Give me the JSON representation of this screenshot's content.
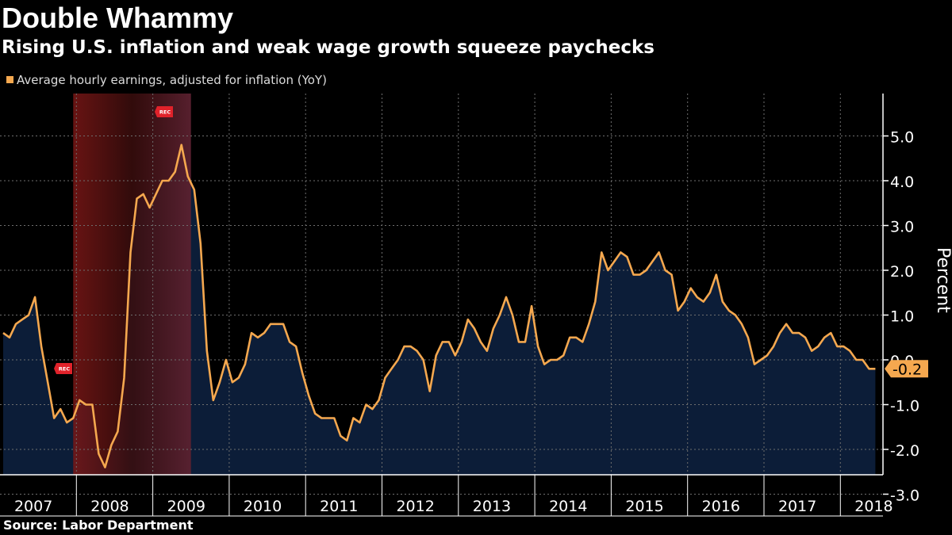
{
  "title": "Double Whammy",
  "subtitle": "Rising U.S. inflation and weak wage growth squeeze paychecks",
  "source": "Source: Labor Department",
  "colors": {
    "background": "#000000",
    "line": "#f5a84f",
    "area": "#0c1d38",
    "recession_start": "#7a1716",
    "recession_end": "#5b2130",
    "rec_marker": "#e0222a",
    "grid": "#6e6e6e",
    "text": "#ffffff"
  },
  "chart_data": {
    "type": "area",
    "title": "Double Whammy",
    "subtitle": "Rising U.S. inflation and weak wage growth squeeze paychecks",
    "ylabel": "Percent",
    "ylim": [
      -3.0,
      5.0
    ],
    "yticks": [
      5.0,
      4.0,
      3.0,
      2.0,
      1.0,
      0.0,
      -1.0,
      -2.0,
      -3.0
    ],
    "ytick_labels": [
      "5.0",
      "4.0",
      "3.0",
      "2.0",
      "1.0",
      "0.0",
      "-1.0",
      "-2.0",
      "-3.0"
    ],
    "x_range": [
      "2007-01",
      "2018-06"
    ],
    "xtick_labels": [
      "2007",
      "2008",
      "2009",
      "2010",
      "2011",
      "2012",
      "2013",
      "2014",
      "2015",
      "2016",
      "2017",
      "2018"
    ],
    "grid": true,
    "legend_position": "top-left",
    "recession": {
      "start": "2007-12",
      "end": "2009-06",
      "marker_label": "REC"
    },
    "last_value_label": "-0.2",
    "series": [
      {
        "name": "Average hourly earnings, adjusted for inflation (YoY)",
        "dates": [
          "2007-01",
          "2007-02",
          "2007-03",
          "2007-04",
          "2007-05",
          "2007-06",
          "2007-07",
          "2007-08",
          "2007-09",
          "2007-10",
          "2007-11",
          "2007-12",
          "2008-01",
          "2008-02",
          "2008-03",
          "2008-04",
          "2008-05",
          "2008-06",
          "2008-07",
          "2008-08",
          "2008-09",
          "2008-10",
          "2008-11",
          "2008-12",
          "2009-01",
          "2009-02",
          "2009-03",
          "2009-04",
          "2009-05",
          "2009-06",
          "2009-07",
          "2009-08",
          "2009-09",
          "2009-10",
          "2009-11",
          "2009-12",
          "2010-01",
          "2010-02",
          "2010-03",
          "2010-04",
          "2010-05",
          "2010-06",
          "2010-07",
          "2010-08",
          "2010-09",
          "2010-10",
          "2010-11",
          "2010-12",
          "2011-01",
          "2011-02",
          "2011-03",
          "2011-04",
          "2011-05",
          "2011-06",
          "2011-07",
          "2011-08",
          "2011-09",
          "2011-10",
          "2011-11",
          "2011-12",
          "2012-01",
          "2012-02",
          "2012-03",
          "2012-04",
          "2012-05",
          "2012-06",
          "2012-07",
          "2012-08",
          "2012-09",
          "2012-10",
          "2012-11",
          "2012-12",
          "2013-01",
          "2013-02",
          "2013-03",
          "2013-04",
          "2013-05",
          "2013-06",
          "2013-07",
          "2013-08",
          "2013-09",
          "2013-10",
          "2013-11",
          "2013-12",
          "2014-01",
          "2014-02",
          "2014-03",
          "2014-04",
          "2014-05",
          "2014-06",
          "2014-07",
          "2014-08",
          "2014-09",
          "2014-10",
          "2014-11",
          "2014-12",
          "2015-01",
          "2015-02",
          "2015-03",
          "2015-04",
          "2015-05",
          "2015-06",
          "2015-07",
          "2015-08",
          "2015-09",
          "2015-10",
          "2015-11",
          "2015-12",
          "2016-01",
          "2016-02",
          "2016-03",
          "2016-04",
          "2016-05",
          "2016-06",
          "2016-07",
          "2016-08",
          "2016-09",
          "2016-10",
          "2016-11",
          "2016-12",
          "2017-01",
          "2017-02",
          "2017-03",
          "2017-04",
          "2017-05",
          "2017-06",
          "2017-07",
          "2017-08",
          "2017-09",
          "2017-10",
          "2017-11",
          "2017-12",
          "2018-01",
          "2018-02",
          "2018-03",
          "2018-04",
          "2018-05",
          "2018-06"
        ],
        "values": [
          0.6,
          0.5,
          0.8,
          0.9,
          1.0,
          1.4,
          0.3,
          -0.5,
          -1.3,
          -1.1,
          -1.4,
          -1.3,
          -0.9,
          -1.0,
          -1.0,
          -2.1,
          -2.4,
          -1.9,
          -1.6,
          -0.4,
          2.4,
          3.6,
          3.7,
          3.4,
          3.7,
          4.0,
          4.0,
          4.2,
          4.8,
          4.1,
          3.8,
          2.6,
          0.2,
          -0.9,
          -0.5,
          0.0,
          -0.5,
          -0.4,
          -0.1,
          0.6,
          0.5,
          0.6,
          0.8,
          0.8,
          0.8,
          0.4,
          0.3,
          -0.3,
          -0.8,
          -1.2,
          -1.3,
          -1.3,
          -1.3,
          -1.7,
          -1.8,
          -1.3,
          -1.4,
          -1.0,
          -1.1,
          -0.9,
          -0.4,
          -0.2,
          0.0,
          0.3,
          0.3,
          0.2,
          0.0,
          -0.7,
          0.1,
          0.4,
          0.4,
          0.1,
          0.4,
          0.9,
          0.7,
          0.4,
          0.2,
          0.7,
          1.0,
          1.4,
          1.0,
          0.4,
          0.4,
          1.2,
          0.3,
          -0.1,
          0.0,
          0.0,
          0.1,
          0.5,
          0.5,
          0.4,
          0.8,
          1.3,
          2.4,
          2.0,
          2.2,
          2.4,
          2.3,
          1.9,
          1.9,
          2.0,
          2.2,
          2.4,
          2.0,
          1.9,
          1.1,
          1.3,
          1.6,
          1.4,
          1.3,
          1.5,
          1.9,
          1.3,
          1.1,
          1.0,
          0.8,
          0.5,
          -0.1,
          0.0,
          0.1,
          0.3,
          0.6,
          0.8,
          0.6,
          0.6,
          0.5,
          0.2,
          0.3,
          0.5,
          0.6,
          0.3,
          0.3,
          0.2,
          0.0,
          0.0,
          -0.2,
          -0.2
        ]
      }
    ]
  }
}
